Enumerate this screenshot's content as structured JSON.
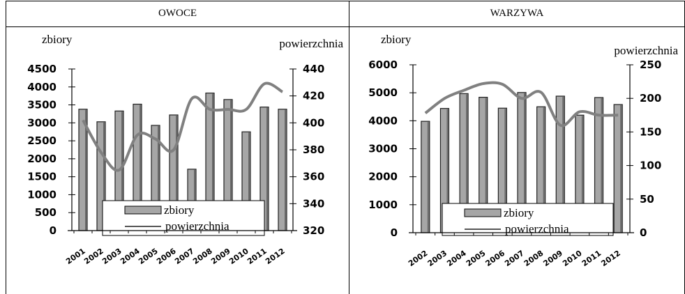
{
  "colors": {
    "bar": "#a6a6a6",
    "bar_edge": "#202020",
    "line": "#808080",
    "axis": "#000000"
  },
  "panels": [
    {
      "header": "OWOCE"
    },
    {
      "header": "WARZYWA"
    }
  ],
  "chart_data": [
    {
      "type": "bar",
      "title": "OWOCE",
      "categories": [
        "2001",
        "2002",
        "2003",
        "2004",
        "2005",
        "2006",
        "2007",
        "2008",
        "2009",
        "2010",
        "2011",
        "2012"
      ],
      "ylabel": "zbiory",
      "ylabel2": "powierzchnia",
      "ylim": [
        0,
        4500
      ],
      "ylim2": [
        320,
        440
      ],
      "yticks": [
        0,
        500,
        1000,
        1500,
        2000,
        2500,
        3000,
        3500,
        4000,
        4500
      ],
      "yticks2": [
        320,
        340,
        360,
        380,
        400,
        420,
        440
      ],
      "series": [
        {
          "name": "zbiory",
          "type": "bar",
          "axis": "left",
          "values": [
            3380,
            3030,
            3330,
            3520,
            2930,
            3220,
            1710,
            3830,
            3650,
            2750,
            3440,
            3380
          ]
        },
        {
          "name": "powierzchnia",
          "type": "line",
          "axis": "right",
          "values": [
            402,
            378,
            365,
            391,
            388,
            380,
            418,
            410,
            410,
            410,
            429,
            423
          ]
        }
      ],
      "legend": {
        "position": "bottom-center",
        "entries": [
          "zbiory",
          "powierzchnia"
        ]
      },
      "grid": false
    },
    {
      "type": "bar",
      "title": "WARZYWA",
      "categories": [
        "2002",
        "2003",
        "2004",
        "2005",
        "2006",
        "2007",
        "2008",
        "2009",
        "2010",
        "2011",
        "2012"
      ],
      "ylabel": "zbiory",
      "ylabel2": "powierzchnia",
      "ylim": [
        0,
        6000
      ],
      "ylim2": [
        0,
        250
      ],
      "yticks": [
        0,
        1000,
        2000,
        3000,
        4000,
        5000,
        6000
      ],
      "yticks2": [
        0,
        50,
        100,
        150,
        200,
        250
      ],
      "series": [
        {
          "name": "zbiory",
          "type": "bar",
          "axis": "left",
          "values": [
            3980,
            4440,
            4970,
            4840,
            4450,
            5010,
            4500,
            4880,
            4200,
            4830,
            4580
          ]
        },
        {
          "name": "powierzchnia",
          "type": "line",
          "axis": "right",
          "values": [
            178,
            200,
            212,
            222,
            221,
            200,
            209,
            160,
            180,
            175,
            175
          ]
        }
      ],
      "legend": {
        "position": "bottom-center",
        "entries": [
          "zbiory",
          "powierzchnia"
        ]
      },
      "grid": false
    }
  ]
}
